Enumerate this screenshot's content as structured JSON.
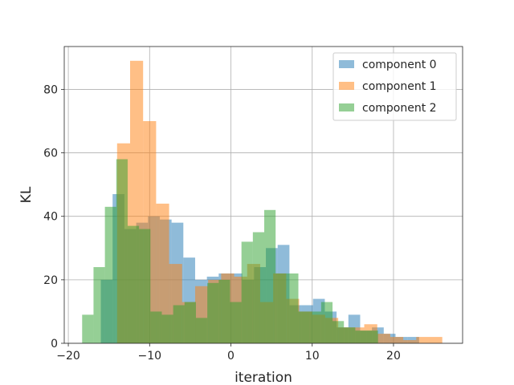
{
  "chart_data": {
    "type": "bar",
    "subtype": "overlapping-histogram",
    "title": "",
    "xlabel": "iteration",
    "ylabel": "KL",
    "xlim": [
      -20.5,
      28.5
    ],
    "ylim": [
      0,
      93.5
    ],
    "xticks": [
      -20,
      -10,
      0,
      10,
      20
    ],
    "xtick_labels": [
      "−20",
      "−10",
      "0",
      "10",
      "20"
    ],
    "yticks": [
      0,
      20,
      40,
      60,
      80
    ],
    "grid": true,
    "legend_position": "top-right",
    "series": [
      {
        "name": "component 0",
        "color": "#1f77b4",
        "alpha": 0.5,
        "bin_width": 1.45,
        "bins": [
          [
            -16.0,
            20
          ],
          [
            -14.55,
            47
          ],
          [
            -13.1,
            36
          ],
          [
            -11.65,
            38
          ],
          [
            -10.2,
            40
          ],
          [
            -8.75,
            39
          ],
          [
            -7.3,
            38
          ],
          [
            -5.85,
            27
          ],
          [
            -4.4,
            20
          ],
          [
            -2.95,
            21
          ],
          [
            -1.5,
            22
          ],
          [
            -0.05,
            22
          ],
          [
            1.4,
            20
          ],
          [
            2.85,
            24
          ],
          [
            4.3,
            30
          ],
          [
            5.75,
            31
          ],
          [
            7.2,
            12
          ],
          [
            8.65,
            12
          ],
          [
            10.1,
            14
          ],
          [
            11.55,
            10
          ],
          [
            13.0,
            5
          ],
          [
            14.45,
            9
          ],
          [
            15.9,
            4
          ],
          [
            17.35,
            5
          ],
          [
            18.8,
            3
          ],
          [
            20.25,
            2
          ],
          [
            21.7,
            2
          ]
        ]
      },
      {
        "name": "component 1",
        "color": "#ff7f0e",
        "alpha": 0.5,
        "bin_width": 1.6,
        "bins": [
          [
            -14.0,
            63
          ],
          [
            -12.4,
            89
          ],
          [
            -10.8,
            70
          ],
          [
            -9.2,
            44
          ],
          [
            -7.6,
            25
          ],
          [
            -6.0,
            13
          ],
          [
            -4.4,
            18
          ],
          [
            -2.8,
            20
          ],
          [
            -1.2,
            22
          ],
          [
            0.4,
            21
          ],
          [
            2.0,
            25
          ],
          [
            3.6,
            13
          ],
          [
            5.2,
            22
          ],
          [
            6.8,
            14
          ],
          [
            8.4,
            10
          ],
          [
            10.0,
            9
          ],
          [
            11.6,
            8
          ],
          [
            13.2,
            5
          ],
          [
            14.8,
            5
          ],
          [
            16.4,
            6
          ],
          [
            18.0,
            3
          ],
          [
            19.6,
            2
          ],
          [
            21.2,
            1
          ],
          [
            22.8,
            2
          ],
          [
            24.4,
            2
          ]
        ]
      },
      {
        "name": "component 2",
        "color": "#2ca02c",
        "alpha": 0.5,
        "bin_width": 1.4,
        "bins": [
          [
            -18.3,
            9
          ],
          [
            -16.9,
            24
          ],
          [
            -15.5,
            43
          ],
          [
            -14.1,
            58
          ],
          [
            -12.7,
            37
          ],
          [
            -11.3,
            36
          ],
          [
            -9.9,
            10
          ],
          [
            -8.5,
            9
          ],
          [
            -7.1,
            12
          ],
          [
            -5.7,
            13
          ],
          [
            -4.3,
            8
          ],
          [
            -2.9,
            19
          ],
          [
            -1.5,
            20
          ],
          [
            -0.1,
            13
          ],
          [
            1.3,
            32
          ],
          [
            2.7,
            35
          ],
          [
            4.1,
            42
          ],
          [
            5.5,
            22
          ],
          [
            6.9,
            22
          ],
          [
            8.3,
            10
          ],
          [
            9.7,
            10
          ],
          [
            11.1,
            13
          ],
          [
            12.5,
            7
          ],
          [
            13.9,
            5
          ],
          [
            15.3,
            4
          ],
          [
            16.7,
            4
          ]
        ]
      }
    ]
  }
}
